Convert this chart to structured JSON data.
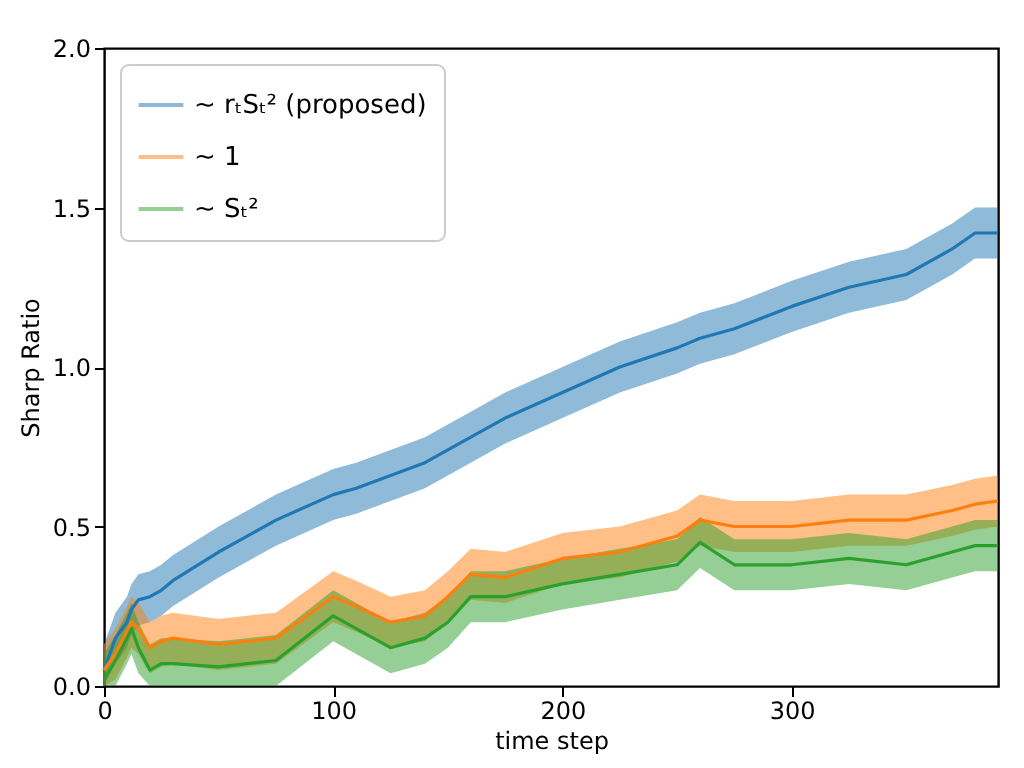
{
  "chart_data": {
    "type": "line",
    "xlabel": "time step",
    "ylabel": "Sharp Ratio",
    "x": [
      0,
      5,
      10,
      12,
      15,
      20,
      25,
      30,
      50,
      75,
      100,
      110,
      125,
      140,
      150,
      160,
      175,
      200,
      225,
      250,
      260,
      275,
      300,
      325,
      350,
      370,
      380,
      390
    ],
    "series": [
      {
        "name": "∼ rₜSₜ² (proposed)",
        "color": "#1f77b4",
        "values": [
          0.05,
          0.15,
          0.2,
          0.24,
          0.27,
          0.28,
          0.3,
          0.33,
          0.42,
          0.52,
          0.6,
          0.62,
          0.66,
          0.7,
          0.74,
          0.78,
          0.84,
          0.92,
          1.0,
          1.06,
          1.09,
          1.12,
          1.19,
          1.25,
          1.29,
          1.37,
          1.42,
          1.42
        ],
        "lower": [
          0,
          0.07,
          0.12,
          0.16,
          0.19,
          0.2,
          0.22,
          0.25,
          0.34,
          0.44,
          0.52,
          0.54,
          0.58,
          0.62,
          0.66,
          0.7,
          0.76,
          0.84,
          0.92,
          0.98,
          1.01,
          1.04,
          1.11,
          1.17,
          1.21,
          1.29,
          1.34,
          1.34
        ],
        "upper": [
          0.13,
          0.23,
          0.28,
          0.32,
          0.35,
          0.36,
          0.38,
          0.41,
          0.5,
          0.6,
          0.68,
          0.7,
          0.74,
          0.78,
          0.82,
          0.86,
          0.92,
          1.0,
          1.08,
          1.14,
          1.17,
          1.2,
          1.27,
          1.33,
          1.37,
          1.45,
          1.5,
          1.5
        ]
      },
      {
        "name": "∼ 1",
        "color": "#ff7f0e",
        "values": [
          0.05,
          0.1,
          0.17,
          0.2,
          0.18,
          0.12,
          0.14,
          0.15,
          0.13,
          0.15,
          0.28,
          0.25,
          0.2,
          0.22,
          0.28,
          0.35,
          0.34,
          0.4,
          0.42,
          0.47,
          0.52,
          0.5,
          0.5,
          0.52,
          0.52,
          0.55,
          0.57,
          0.58
        ],
        "lower": [
          0,
          0.02,
          0.09,
          0.12,
          0.1,
          0.04,
          0.06,
          0.07,
          0.05,
          0.07,
          0.2,
          0.17,
          0.12,
          0.14,
          0.2,
          0.27,
          0.26,
          0.32,
          0.34,
          0.39,
          0.44,
          0.42,
          0.42,
          0.44,
          0.44,
          0.47,
          0.49,
          0.5
        ],
        "upper": [
          0.13,
          0.18,
          0.25,
          0.28,
          0.26,
          0.2,
          0.22,
          0.23,
          0.21,
          0.23,
          0.36,
          0.33,
          0.28,
          0.3,
          0.36,
          0.43,
          0.42,
          0.48,
          0.5,
          0.55,
          0.6,
          0.58,
          0.58,
          0.6,
          0.6,
          0.63,
          0.65,
          0.66
        ]
      },
      {
        "name": "∼ Sₜ²",
        "color": "#2ca02c",
        "values": [
          0.02,
          0.08,
          0.15,
          0.18,
          0.12,
          0.05,
          0.07,
          0.07,
          0.06,
          0.08,
          0.22,
          0.18,
          0.12,
          0.15,
          0.2,
          0.28,
          0.28,
          0.32,
          0.35,
          0.38,
          0.45,
          0.38,
          0.38,
          0.4,
          0.38,
          0.42,
          0.44,
          0.44
        ],
        "lower": [
          0,
          0,
          0.07,
          0.1,
          0.04,
          0,
          0,
          0,
          0,
          0,
          0.14,
          0.1,
          0.04,
          0.07,
          0.12,
          0.2,
          0.2,
          0.24,
          0.27,
          0.3,
          0.37,
          0.3,
          0.3,
          0.32,
          0.3,
          0.34,
          0.36,
          0.36
        ],
        "upper": [
          0.1,
          0.16,
          0.23,
          0.26,
          0.2,
          0.13,
          0.15,
          0.15,
          0.14,
          0.16,
          0.3,
          0.26,
          0.2,
          0.23,
          0.28,
          0.36,
          0.36,
          0.4,
          0.43,
          0.46,
          0.53,
          0.46,
          0.46,
          0.48,
          0.46,
          0.5,
          0.52,
          0.52
        ]
      }
    ],
    "xlim": [
      0,
      390
    ],
    "xticks": [
      0,
      100,
      200,
      300
    ],
    "ylim": [
      0,
      2
    ],
    "yticks": [
      {
        "value": 0,
        "label": "0.0"
      },
      0.5,
      {
        "value": 1,
        "label": "1.0"
      },
      1.5,
      {
        "value": 2,
        "label": "2.0"
      }
    ],
    "legend": "top left",
    "grid": false
  }
}
